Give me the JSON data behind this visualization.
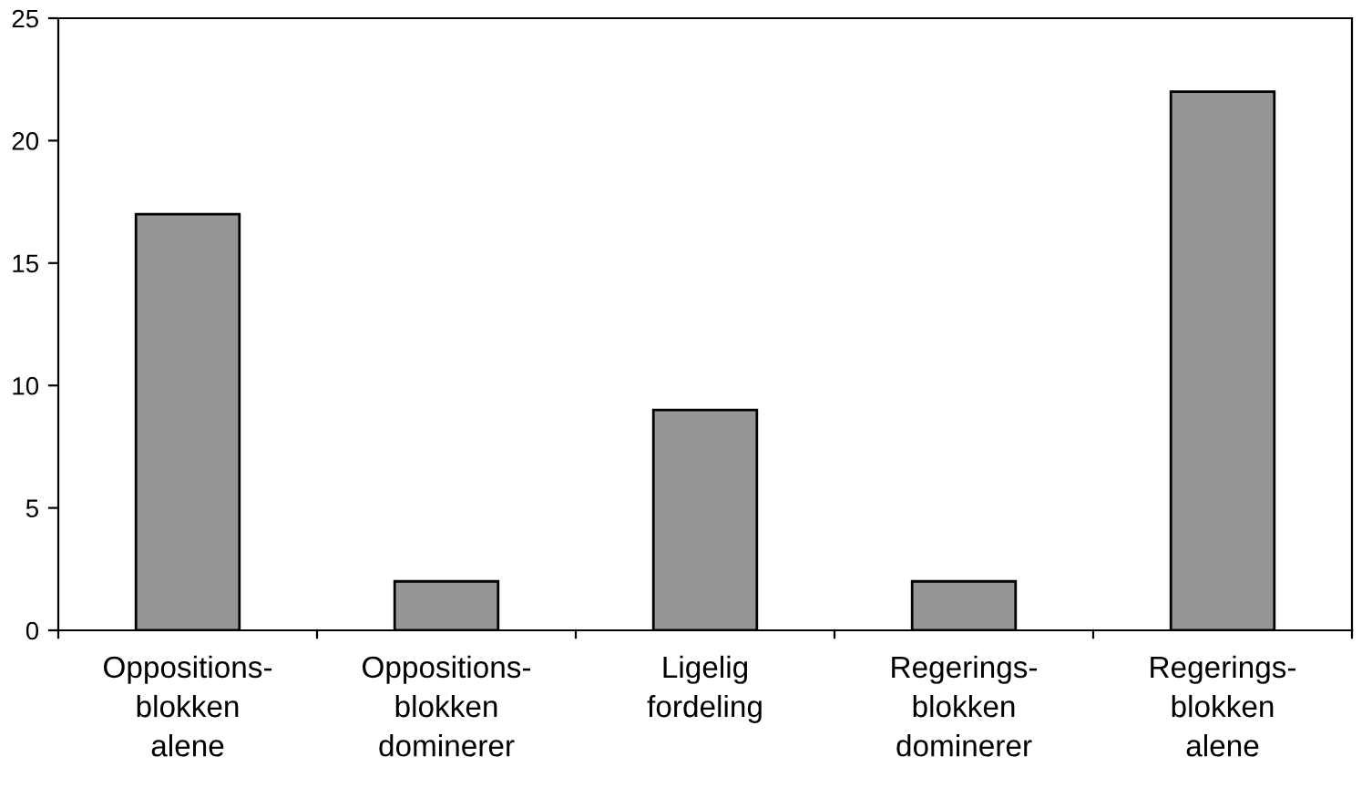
{
  "chart_data": {
    "type": "bar",
    "categories": [
      "Oppositions-\nblokken\nalene",
      "Oppositions-\nblokken\ndominerer",
      "Ligelig\nfordeling",
      "Regerings-\nblokken\ndominerer",
      "Regerings-\nblokken\nalene"
    ],
    "values": [
      17,
      2,
      9,
      2,
      22
    ],
    "color": "#969696",
    "ylim": [
      0,
      25
    ],
    "yticks": [
      0,
      5,
      10,
      15,
      20,
      25
    ],
    "grid": false
  }
}
